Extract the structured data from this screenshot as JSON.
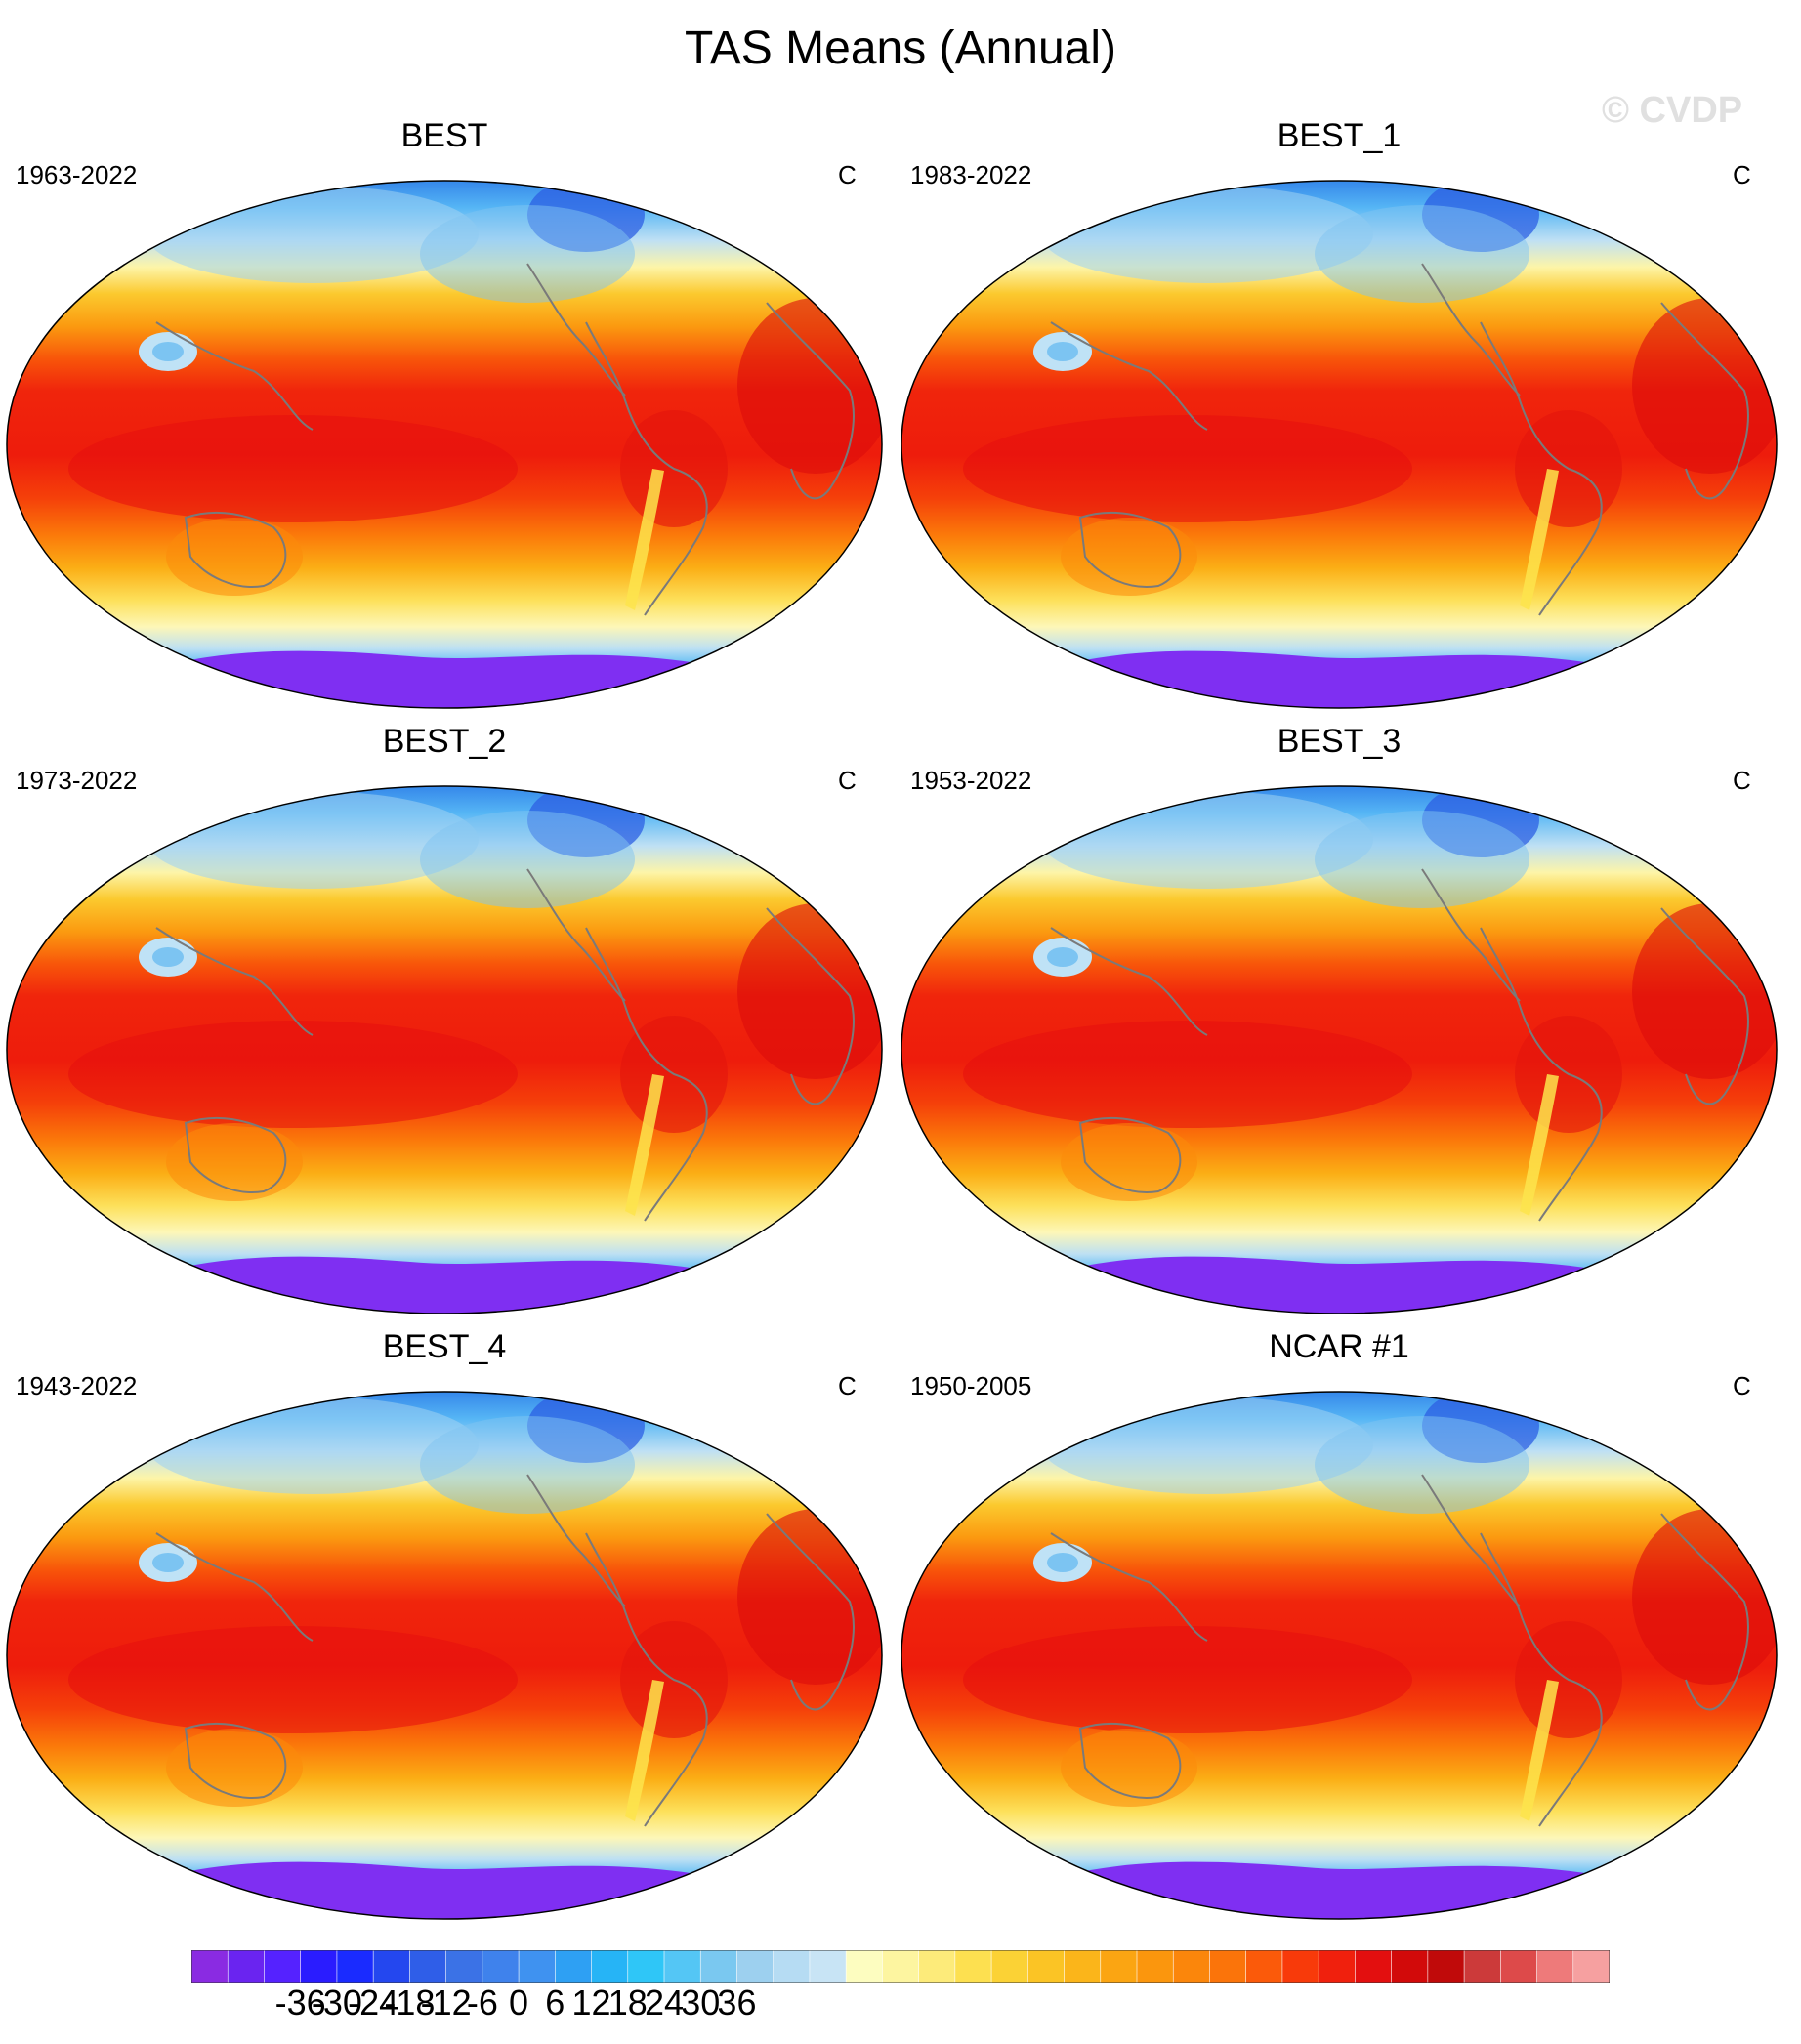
{
  "figure": {
    "title": "TAS Means (Annual)",
    "watermark": "© CVDP"
  },
  "panels": [
    {
      "name": "BEST",
      "years": "1963-2022",
      "units": "C"
    },
    {
      "name": "BEST_1",
      "years": "1983-2022",
      "units": "C"
    },
    {
      "name": "BEST_2",
      "years": "1973-2022",
      "units": "C"
    },
    {
      "name": "BEST_3",
      "years": "1953-2022",
      "units": "C"
    },
    {
      "name": "BEST_4",
      "years": "1943-2022",
      "units": "C"
    },
    {
      "name": "NCAR #1",
      "years": "1950-2005",
      "units": "C"
    }
  ],
  "colorbar": {
    "labels": [
      "-36",
      "-30",
      "-24",
      "-18",
      "-12",
      "-6",
      "0",
      "6",
      "12",
      "18",
      "24",
      "30",
      "36"
    ],
    "colors": [
      "#8a2be2",
      "#6a24f0",
      "#5522ff",
      "#2a1cff",
      "#1a2bff",
      "#2447ef",
      "#2f5ee8",
      "#3b72e6",
      "#3f82ec",
      "#3f92f0",
      "#2ea0f3",
      "#26b4f6",
      "#2fc6f7",
      "#54c6f5",
      "#7ac8f0",
      "#9dd0ef",
      "#b6dcf3",
      "#c8e4f5",
      "#fdfdc0",
      "#fdf5a0",
      "#fdeb7a",
      "#fde050",
      "#fbd235",
      "#fbc425",
      "#fbb51a",
      "#fba512",
      "#fb960d",
      "#fb860b",
      "#fb740a",
      "#fb5a0a",
      "#f83a0a",
      "#f0200d",
      "#e30f0f",
      "#d20a0a",
      "#c00a0a",
      "#cc3a3a",
      "#dd4a4a",
      "#ee7a7a",
      "#f6a0a0"
    ]
  }
}
